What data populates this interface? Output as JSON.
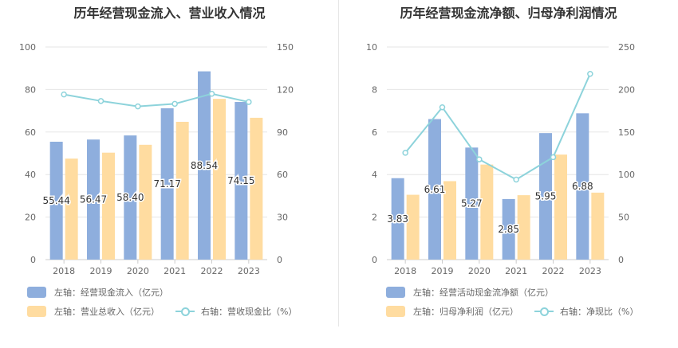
{
  "colors": {
    "bar_primary": "#8eaedd",
    "bar_secondary": "#ffdca0",
    "line": "#8dd3db",
    "grid": "#e6e6e6"
  },
  "chart_data": [
    {
      "type": "bar",
      "title": "历年经营现金流入、营业收入情况",
      "categories": [
        "2018",
        "2019",
        "2020",
        "2021",
        "2022",
        "2023"
      ],
      "left_axis": {
        "ylim": [
          0,
          100
        ],
        "ticks": [
          "0",
          "20",
          "40",
          "60",
          "80",
          "100"
        ]
      },
      "right_axis": {
        "ylim": [
          0,
          150
        ],
        "ticks": [
          "0",
          "30",
          "60",
          "90",
          "120",
          "150"
        ]
      },
      "series": [
        {
          "name": "左轴：经营现金流入（亿元）",
          "values": [
            55.44,
            56.47,
            58.4,
            71.17,
            88.54,
            74.15
          ],
          "labels": [
            "55.44",
            "56.47",
            "58.40",
            "71.17",
            "88.54",
            "74.15"
          ]
        },
        {
          "name": "左轴：营业总收入（亿元）",
          "values": [
            47.5,
            50.3,
            54.0,
            64.8,
            75.6,
            66.7
          ]
        },
        {
          "name": "右轴：营收现金比（%）",
          "type": "line",
          "axis": "right",
          "values": [
            116.5,
            111.9,
            108.1,
            109.9,
            117.0,
            111.2
          ]
        }
      ],
      "grid": true,
      "legend": "bottom"
    },
    {
      "type": "bar",
      "title": "历年经营现金流净额、归母净利润情况",
      "categories": [
        "2018",
        "2019",
        "2020",
        "2021",
        "2022",
        "2023"
      ],
      "left_axis": {
        "ylim": [
          0,
          10
        ],
        "ticks": [
          "0",
          "2",
          "4",
          "6",
          "8",
          "10"
        ]
      },
      "right_axis": {
        "ylim": [
          0,
          250
        ],
        "ticks": [
          "0",
          "50",
          "100",
          "150",
          "200",
          "250"
        ]
      },
      "series": [
        {
          "name": "左轴：经营活动现金流净额（亿元）",
          "values": [
            3.83,
            6.61,
            5.27,
            2.85,
            5.95,
            6.88
          ],
          "labels": [
            "3.83",
            "6.61",
            "5.27",
            "2.85",
            "5.95",
            "6.88"
          ]
        },
        {
          "name": "左轴：归母净利润（亿元）",
          "values": [
            3.05,
            3.69,
            4.47,
            3.03,
            4.94,
            3.15
          ]
        },
        {
          "name": "右轴：净现比（%）",
          "type": "line",
          "axis": "right",
          "values": [
            125.6,
            179.1,
            117.9,
            94.1,
            120.4,
            218.4
          ]
        }
      ],
      "grid": true,
      "legend": "bottom"
    }
  ]
}
